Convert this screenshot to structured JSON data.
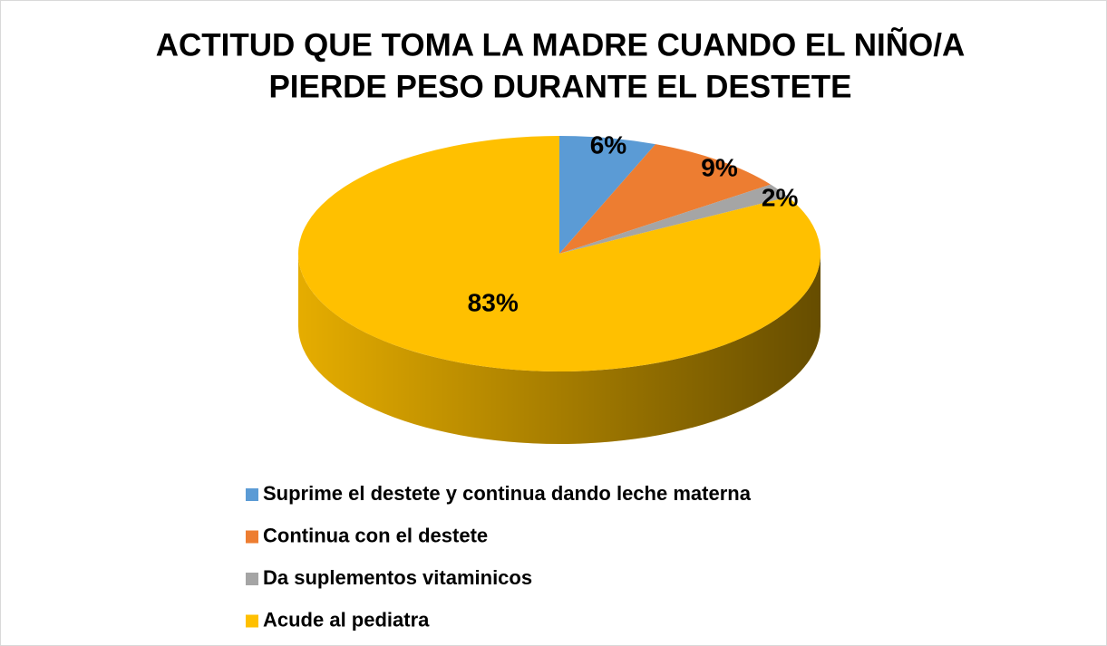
{
  "chart_data": {
    "type": "pie3d",
    "title": [
      "ACTITUD QUE TOMA LA MADRE CUANDO EL NIÑO/A",
      "PIERDE PESO DURANTE EL DESTETE"
    ],
    "categories": [
      "Suprime el destete y continua dando leche materna",
      "Continua con el destete",
      "Da suplementos vitaminicos",
      "Acude al pediatra"
    ],
    "values": [
      6,
      9,
      2,
      83
    ],
    "value_labels": [
      "6%",
      "9%",
      "2%",
      "83%"
    ],
    "colors": [
      "#5b9bd5",
      "#ed7d31",
      "#a5a5a5",
      "#ffc000"
    ]
  }
}
